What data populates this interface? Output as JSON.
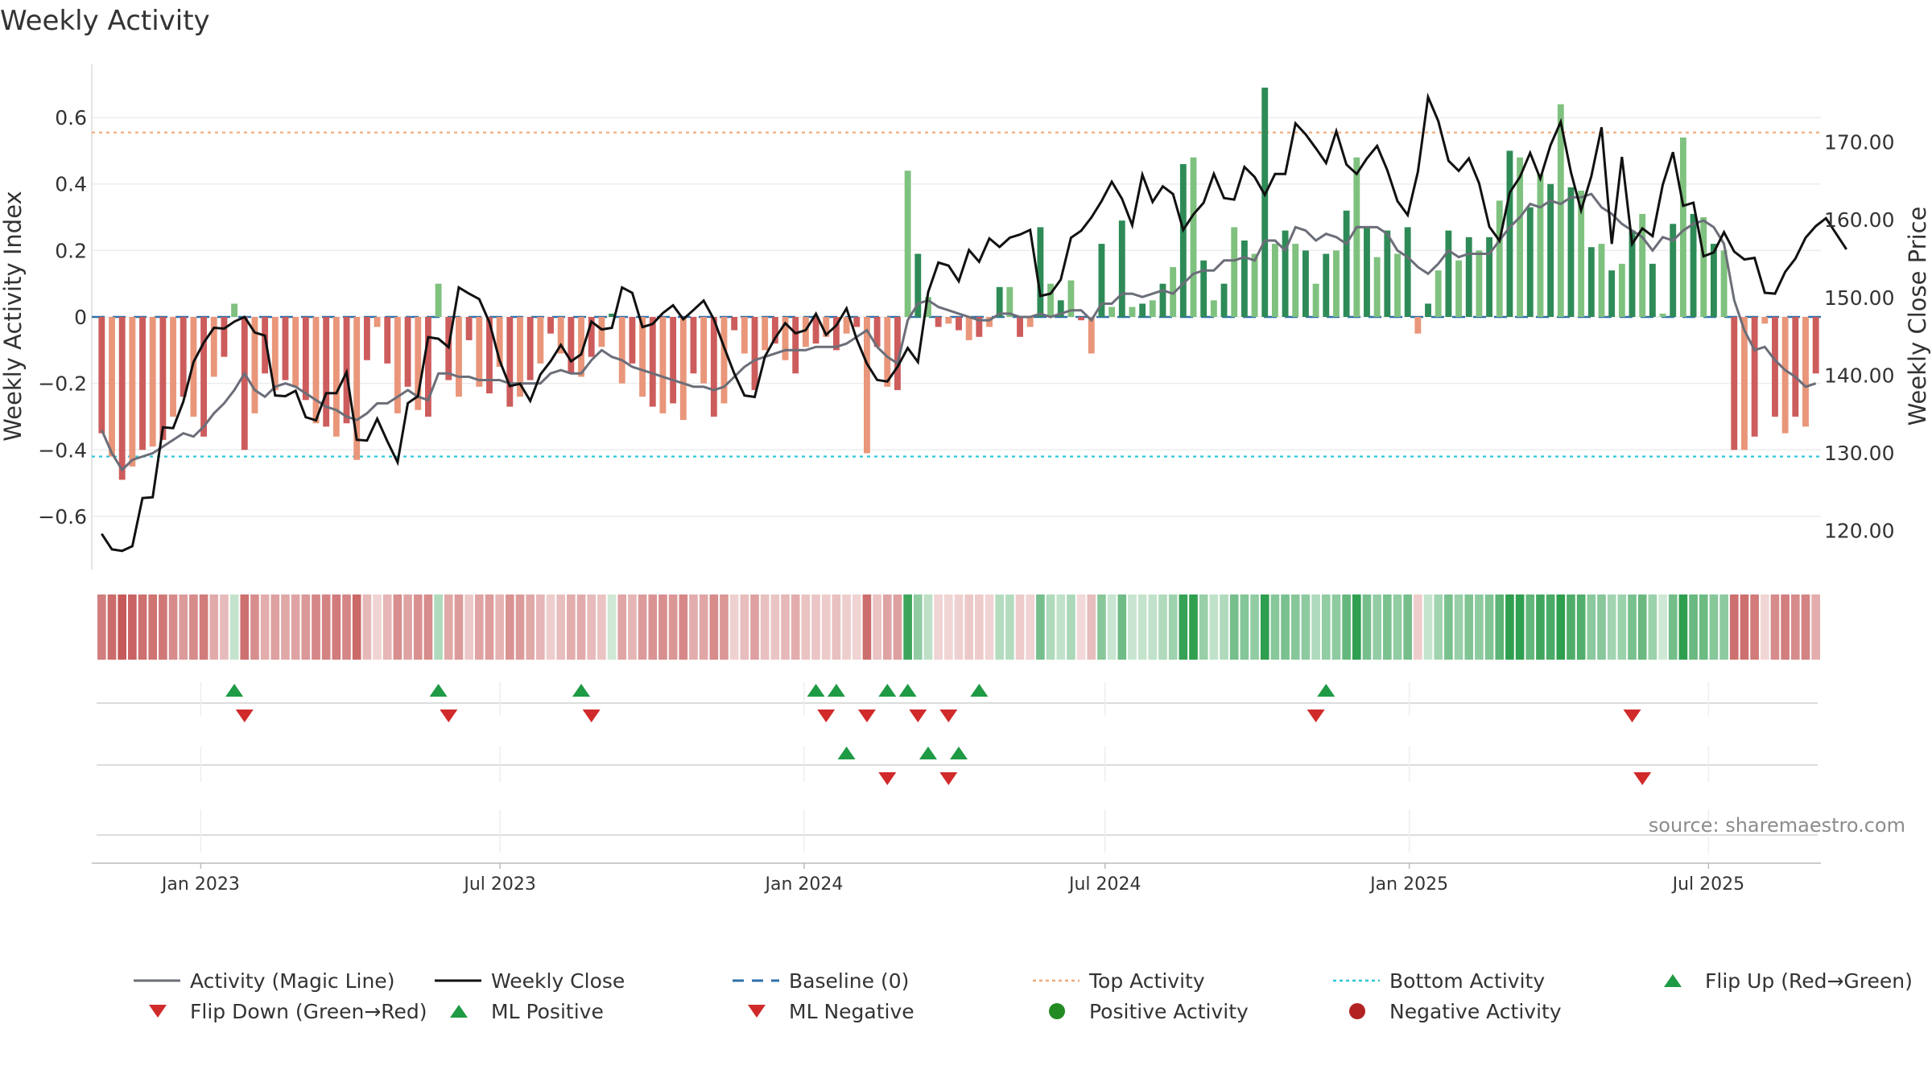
{
  "chart_data": {
    "type": "bar",
    "title": "Weekly Activity",
    "ylabel_left": "Weekly Activity Index",
    "ylabel_right": "Weekly Close Price",
    "source": "source: sharemaestro.com",
    "x_start": "2022-10-30",
    "x_end": "2025-09-07",
    "date_ticks": [
      {
        "date": "2023-01-01",
        "label": "Jan 2023"
      },
      {
        "date": "2023-07-01",
        "label": "Jul 2023"
      },
      {
        "date": "2024-01-01",
        "label": "Jan 2024"
      },
      {
        "date": "2024-07-01",
        "label": "Jul 2024"
      },
      {
        "date": "2025-01-01",
        "label": "Jan 2025"
      },
      {
        "date": "2025-07-01",
        "label": "Jul 2025"
      }
    ],
    "left_axis": {
      "ylim": [
        -0.76,
        0.76
      ],
      "ticks": [
        0.6,
        0.4,
        0.2,
        0,
        -0.2,
        -0.4,
        -0.6
      ],
      "tick_labels": [
        "0.6",
        "0.4",
        "0.2",
        "0",
        "−0.2",
        "−0.4",
        "−0.6"
      ]
    },
    "right_axis": {
      "ylim": [
        115,
        180
      ],
      "ticks": [
        170,
        160,
        150,
        140,
        130,
        120
      ],
      "tick_labels": [
        "170.00",
        "160.00",
        "150.00",
        "140.00",
        "130.00",
        "120.00"
      ]
    },
    "top_activity": 0.555,
    "bottom_activity": -0.42,
    "weekly_activity": [
      -0.35,
      -0.42,
      -0.49,
      -0.45,
      -0.4,
      -0.39,
      -0.37,
      -0.3,
      -0.24,
      -0.3,
      -0.36,
      -0.18,
      -0.12,
      0.04,
      -0.4,
      -0.29,
      -0.17,
      -0.22,
      -0.19,
      -0.21,
      -0.25,
      -0.32,
      -0.33,
      -0.36,
      -0.32,
      -0.43,
      -0.13,
      -0.03,
      -0.14,
      -0.29,
      -0.21,
      -0.28,
      -0.3,
      0.1,
      -0.19,
      -0.24,
      -0.07,
      -0.21,
      -0.23,
      -0.15,
      -0.27,
      -0.24,
      -0.19,
      -0.14,
      -0.05,
      -0.11,
      -0.17,
      -0.18,
      -0.12,
      -0.09,
      0.01,
      -0.2,
      -0.14,
      -0.24,
      -0.27,
      -0.29,
      -0.26,
      -0.31,
      -0.17,
      -0.2,
      -0.3,
      -0.26,
      -0.04,
      -0.11,
      -0.22,
      -0.1,
      -0.08,
      -0.13,
      -0.17,
      -0.09,
      -0.08,
      -0.06,
      -0.1,
      -0.05,
      -0.03,
      -0.41,
      -0.09,
      -0.21,
      -0.22,
      0.44,
      0.19,
      0.06,
      -0.03,
      -0.02,
      -0.04,
      -0.07,
      -0.06,
      -0.03,
      0.09,
      0.09,
      -0.06,
      -0.03,
      0.27,
      0.1,
      0.05,
      0.11,
      -0.01,
      -0.11,
      0.22,
      0.03,
      0.29,
      0.03,
      0.04,
      0.05,
      0.1,
      0.15,
      0.46,
      0.48,
      0.17,
      0.05,
      0.1,
      0.27,
      0.23,
      0.19,
      0.69,
      0.22,
      0.26,
      0.22,
      0.2,
      0.1,
      0.19,
      0.2,
      0.32,
      0.48,
      0.27,
      0.18,
      0.26,
      0.19,
      0.27,
      -0.05,
      0.04,
      0.14,
      0.26,
      0.17,
      0.24,
      0.2,
      0.24,
      0.35,
      0.5,
      0.48,
      0.33,
      0.43,
      0.4,
      0.64,
      0.39,
      0.38,
      0.21,
      0.22,
      0.14,
      0.16,
      0.26,
      0.31,
      0.16,
      0.01,
      0.28,
      0.54,
      0.31,
      0.3,
      0.22,
      0.2,
      -0.4,
      -0.4,
      -0.36,
      -0.02,
      -0.3,
      -0.35,
      -0.3,
      -0.33,
      -0.17
    ],
    "magic_line": [
      -0.34,
      -0.41,
      -0.46,
      -0.43,
      -0.42,
      -0.41,
      -0.39,
      -0.37,
      -0.35,
      -0.36,
      -0.33,
      -0.29,
      -0.26,
      -0.22,
      -0.17,
      -0.22,
      -0.24,
      -0.21,
      -0.2,
      -0.21,
      -0.23,
      -0.25,
      -0.27,
      -0.28,
      -0.3,
      -0.31,
      -0.29,
      -0.26,
      -0.26,
      -0.24,
      -0.22,
      -0.24,
      -0.25,
      -0.17,
      -0.17,
      -0.18,
      -0.18,
      -0.19,
      -0.19,
      -0.19,
      -0.2,
      -0.2,
      -0.2,
      -0.2,
      -0.17,
      -0.16,
      -0.17,
      -0.17,
      -0.13,
      -0.1,
      -0.12,
      -0.13,
      -0.15,
      -0.16,
      -0.17,
      -0.18,
      -0.19,
      -0.2,
      -0.21,
      -0.21,
      -0.22,
      -0.21,
      -0.18,
      -0.15,
      -0.13,
      -0.12,
      -0.11,
      -0.1,
      -0.1,
      -0.1,
      -0.09,
      -0.09,
      -0.09,
      -0.08,
      -0.06,
      -0.04,
      -0.09,
      -0.12,
      -0.14,
      -0.01,
      0.04,
      0.05,
      0.03,
      0.02,
      0.01,
      0.0,
      -0.01,
      -0.01,
      0.01,
      0.01,
      0.0,
      0.0,
      0.01,
      0.0,
      0.01,
      0.02,
      0.02,
      -0.01,
      0.04,
      0.04,
      0.07,
      0.07,
      0.06,
      0.07,
      0.08,
      0.07,
      0.1,
      0.13,
      0.14,
      0.14,
      0.17,
      0.17,
      0.18,
      0.17,
      0.23,
      0.23,
      0.2,
      0.27,
      0.26,
      0.23,
      0.25,
      0.24,
      0.22,
      0.27,
      0.27,
      0.27,
      0.25,
      0.2,
      0.18,
      0.15,
      0.13,
      0.16,
      0.2,
      0.18,
      0.19,
      0.19,
      0.19,
      0.23,
      0.27,
      0.3,
      0.34,
      0.33,
      0.35,
      0.34,
      0.36,
      0.36,
      0.37,
      0.33,
      0.31,
      0.28,
      0.26,
      0.24,
      0.2,
      0.24,
      0.23,
      0.26,
      0.28,
      0.29,
      0.27,
      0.22,
      0.05,
      -0.04,
      -0.1,
      -0.09,
      -0.13,
      -0.16,
      -0.18,
      -0.21,
      -0.2
    ],
    "weekly_close": [
      119.6,
      117.6,
      117.4,
      118.0,
      124.2,
      124.3,
      133.3,
      133.2,
      136.6,
      141.7,
      144.2,
      146.1,
      146.0,
      146.9,
      147.5,
      145.5,
      145.1,
      137.4,
      137.3,
      138.0,
      134.6,
      134.2,
      137.7,
      137.7,
      140.4,
      131.7,
      131.6,
      134.4,
      131.5,
      128.8,
      136.4,
      137.3,
      144.9,
      144.7,
      143.6,
      151.3,
      150.5,
      149.8,
      146.8,
      141.9,
      138.6,
      138.9,
      136.7,
      140.1,
      141.8,
      143.9,
      141.8,
      142.7,
      146.9,
      145.9,
      146.1,
      151.3,
      150.6,
      146.2,
      146.6,
      148.0,
      149.0,
      147.2,
      148.4,
      149.6,
      147.2,
      143.6,
      140.2,
      137.4,
      137.2,
      142.4,
      144.8,
      146.7,
      145.4,
      145.8,
      147.9,
      145.2,
      146.4,
      148.6,
      144.6,
      141.5,
      139.4,
      139.2,
      141.1,
      143.5,
      141.7,
      150.7,
      154.5,
      154.1,
      152.1,
      156.1,
      154.6,
      157.6,
      156.5,
      157.7,
      158.1,
      158.7,
      150.2,
      150.5,
      152.3,
      157.7,
      158.6,
      160.3,
      162.4,
      164.9,
      162.7,
      159.3,
      165.8,
      162.3,
      164.3,
      163.3,
      158.7,
      160.7,
      162.2,
      165.9,
      162.8,
      162.6,
      166.8,
      165.5,
      163.2,
      165.9,
      165.9,
      172.4,
      171.0,
      169.2,
      167.3,
      171.4,
      167.1,
      165.9,
      167.9,
      169.5,
      166.4,
      162.4,
      160.6,
      166.2,
      175.8,
      172.7,
      167.6,
      166.3,
      167.9,
      164.7,
      159.1,
      157.3,
      163.5,
      165.5,
      168.6,
      165.3,
      169.6,
      172.6,
      166.1,
      161.2,
      165.6,
      171.9,
      156.9,
      168.1,
      156.9,
      158.9,
      157.9,
      164.5,
      168.7,
      161.8,
      162.2,
      155.3,
      155.8,
      158.4,
      155.9,
      154.9,
      155.1,
      150.6,
      150.5,
      153.3,
      155.0,
      157.7,
      159.2,
      160.2,
      158.2,
      156.2
    ],
    "strip_intensity": [
      -0.35,
      -0.42,
      -0.49,
      -0.45,
      -0.4,
      -0.39,
      -0.37,
      -0.3,
      -0.24,
      -0.3,
      -0.36,
      -0.18,
      -0.12,
      0.04,
      -0.4,
      -0.29,
      -0.17,
      -0.22,
      -0.19,
      -0.21,
      -0.25,
      -0.32,
      -0.33,
      -0.36,
      -0.32,
      -0.43,
      -0.13,
      -0.03,
      -0.14,
      -0.29,
      -0.21,
      -0.28,
      -0.3,
      0.1,
      -0.19,
      -0.24,
      -0.07,
      -0.21,
      -0.23,
      -0.15,
      -0.27,
      -0.24,
      -0.19,
      -0.14,
      -0.05,
      -0.11,
      -0.17,
      -0.18,
      -0.12,
      -0.09,
      0.01,
      -0.2,
      -0.14,
      -0.24,
      -0.27,
      -0.29,
      -0.26,
      -0.31,
      -0.17,
      -0.2,
      -0.3,
      -0.26,
      -0.04,
      -0.11,
      -0.22,
      -0.1,
      -0.08,
      -0.13,
      -0.17,
      -0.09,
      -0.08,
      -0.06,
      -0.1,
      -0.05,
      -0.03,
      -0.41,
      -0.09,
      -0.21,
      -0.22,
      0.44,
      0.19,
      0.06,
      -0.03,
      -0.02,
      -0.04,
      -0.07,
      -0.06,
      -0.03,
      0.09,
      0.09,
      -0.06,
      -0.03,
      0.27,
      0.1,
      0.05,
      0.11,
      -0.01,
      -0.11,
      0.22,
      0.03,
      0.29,
      0.03,
      0.04,
      0.05,
      0.1,
      0.15,
      0.46,
      0.48,
      0.17,
      0.05,
      0.1,
      0.27,
      0.23,
      0.19,
      0.69,
      0.22,
      0.26,
      0.22,
      0.2,
      0.1,
      0.19,
      0.2,
      0.32,
      0.48,
      0.27,
      0.18,
      0.26,
      0.19,
      0.27,
      -0.05,
      0.04,
      0.14,
      0.26,
      0.17,
      0.24,
      0.2,
      0.24,
      0.35,
      0.5,
      0.48,
      0.33,
      0.43,
      0.4,
      0.64,
      0.39,
      0.38,
      0.21,
      0.22,
      0.14,
      0.16,
      0.26,
      0.31,
      0.16,
      0.01,
      0.28,
      0.54,
      0.31,
      0.3,
      0.22,
      0.2,
      -0.4,
      -0.4,
      -0.36,
      -0.02,
      -0.3,
      -0.35,
      -0.3,
      -0.33,
      -0.17
    ],
    "flip_up_weeks": [
      13,
      33,
      47,
      70,
      72,
      77,
      79,
      86,
      120
    ],
    "flip_down_weeks": [
      14,
      34,
      48,
      71,
      75,
      80,
      83,
      119,
      150
    ],
    "ml_positive_weeks": [
      73,
      81,
      84
    ],
    "ml_negative_weeks": [
      77,
      83,
      151
    ],
    "legend": [
      {
        "label": "Activity (Magic Line)",
        "kind": "line",
        "color": "#6b6e78"
      },
      {
        "label": "Weekly Close",
        "kind": "line",
        "color": "#111111"
      },
      {
        "label": "Baseline (0)",
        "kind": "dash",
        "color": "#2f6fa8"
      },
      {
        "label": "Top Activity",
        "kind": "dot",
        "color": "#f0a97a"
      },
      {
        "label": "Bottom Activity",
        "kind": "dot",
        "color": "#2bc7d6"
      },
      {
        "label": "Flip Up (Red→Green)",
        "kind": "tri-up",
        "color": "#1f9a45"
      },
      {
        "label": "Flip Down (Green→Red)",
        "kind": "tri-down",
        "color": "#d12a2a"
      },
      {
        "label": "ML Positive",
        "kind": "tri-up",
        "color": "#1f9a45"
      },
      {
        "label": "ML Negative",
        "kind": "tri-down",
        "color": "#d12a2a"
      },
      {
        "label": "Positive Activity",
        "kind": "circle",
        "color": "#228b22"
      },
      {
        "label": "Negative Activity",
        "kind": "circle",
        "color": "#b22222"
      }
    ],
    "colors": {
      "pos_strong": "#2e8b57",
      "pos_light": "#7fc17f",
      "neg_strong": "#cd5c5c",
      "neg_light": "#e9967a",
      "magic_line": "#6b6e78",
      "close_line": "#111111",
      "baseline": "#2f6fa8",
      "top": "#f0a97a",
      "bottom": "#2bc7d6",
      "up": "#1f9a45",
      "down": "#d12a2a"
    }
  }
}
